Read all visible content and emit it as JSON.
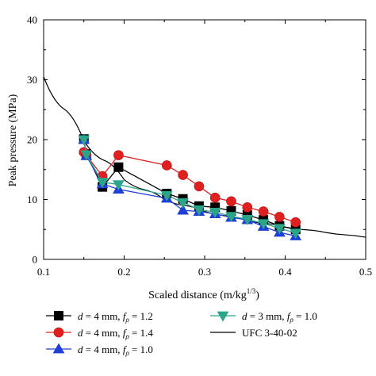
{
  "chart_data": {
    "type": "line",
    "title": "",
    "xlabel": "Scaled distance (m/kg",
    "xlabel_sup": "1/3",
    "xlabel_end": ")",
    "ylabel": "Peak pressure (MPa)",
    "xlim": [
      0.1,
      0.5
    ],
    "ylim": [
      0,
      40
    ],
    "x_ticks": [
      0.1,
      0.2,
      0.3,
      0.4,
      0.5
    ],
    "x_tick_labels": [
      "0.1",
      "0.2",
      "0.3",
      "0.4",
      "0.5"
    ],
    "y_ticks": [
      0,
      10,
      20,
      30,
      40
    ],
    "y_tick_labels": [
      "0",
      "10",
      "20",
      "30",
      "40"
    ],
    "grid": false,
    "legend_position": "bottom",
    "series": [
      {
        "name": "d = 4 mm, fρ = 1.2",
        "legend": {
          "d": "d",
          "mid": " = 4 mm, ",
          "f": "f",
          "sub": "ρ",
          "end": " = 1.2"
        },
        "color": "#000000",
        "marker": "square",
        "x": [
          0.15,
          0.153,
          0.173,
          0.193,
          0.253,
          0.273,
          0.293,
          0.313,
          0.333,
          0.353,
          0.373,
          0.393,
          0.413
        ],
        "y": [
          20.1,
          17.6,
          12.1,
          15.4,
          11.0,
          10.1,
          8.9,
          8.7,
          8.1,
          7.4,
          6.6,
          5.6,
          5.0
        ]
      },
      {
        "name": "d = 4 mm, fρ = 1.4",
        "legend": {
          "d": "d",
          "mid": " = 4 mm, ",
          "f": "f",
          "sub": "ρ",
          "end": " = 1.4"
        },
        "color": "#e02020",
        "marker": "circle",
        "x": [
          0.15,
          0.153,
          0.173,
          0.193,
          0.253,
          0.273,
          0.293,
          0.313,
          0.333,
          0.353,
          0.373,
          0.393,
          0.413
        ],
        "y": [
          17.9,
          17.4,
          13.9,
          17.4,
          15.7,
          14.1,
          12.2,
          10.3,
          9.7,
          8.7,
          8.0,
          7.1,
          6.2
        ]
      },
      {
        "name": "d = 4 mm, fρ = 1.0",
        "legend": {
          "d": "d",
          "mid": " = 4 mm, ",
          "f": "f",
          "sub": "ρ",
          "end": " = 1.0"
        },
        "color": "#1f3fd8",
        "marker": "triangle-up",
        "x": [
          0.15,
          0.153,
          0.173,
          0.193,
          0.253,
          0.273,
          0.293,
          0.313,
          0.333,
          0.353,
          0.373,
          0.393,
          0.413
        ],
        "y": [
          20.0,
          17.3,
          12.6,
          11.7,
          10.2,
          8.2,
          8.0,
          7.6,
          7.0,
          6.6,
          5.5,
          4.5,
          3.9
        ]
      },
      {
        "name": "d = 3 mm, fρ = 1.0",
        "legend": {
          "d": "d",
          "mid": " = 3 mm, ",
          "f": "f",
          "sub": "ρ",
          "end": " = 1.0"
        },
        "color": "#2aa58a",
        "marker": "triangle-down",
        "x": [
          0.15,
          0.153,
          0.173,
          0.193,
          0.253,
          0.273,
          0.293,
          0.313,
          0.333,
          0.353,
          0.373,
          0.393,
          0.413
        ],
        "y": [
          20.0,
          17.5,
          12.9,
          12.5,
          10.7,
          9.5,
          8.3,
          7.9,
          7.2,
          6.7,
          6.0,
          5.2,
          4.4
        ]
      },
      {
        "name": "UFC 3-40-02",
        "legend": {
          "plain": "UFC 3-40-02"
        },
        "color": "#000000",
        "marker": "none",
        "x": [
          0.1,
          0.15,
          0.2,
          0.25,
          0.3,
          0.35,
          0.4,
          0.45,
          0.5
        ],
        "y": [
          30.5,
          19.8,
          13.3,
          10.0,
          8.0,
          6.6,
          5.4,
          4.5,
          3.7
        ]
      }
    ]
  }
}
